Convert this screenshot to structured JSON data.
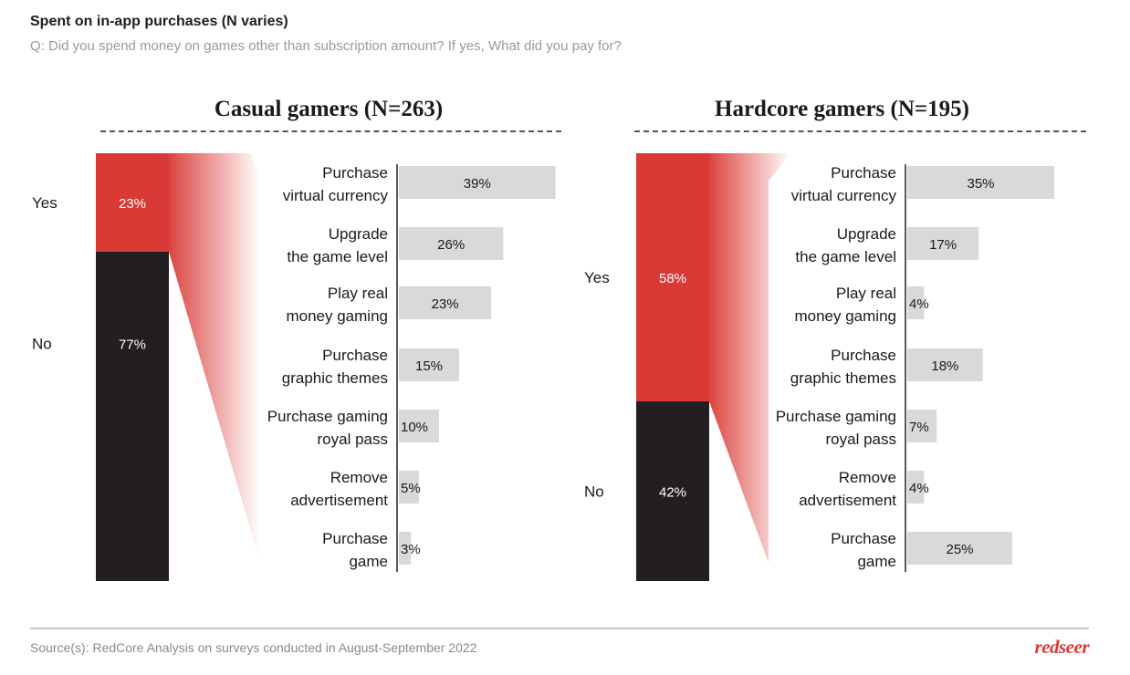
{
  "header": {
    "title": "Spent on in-app purchases (N varies)",
    "subtitle": "Q: Did you spend money on games other than subscription amount? If yes, What did you pay for?"
  },
  "footer": {
    "source": "Source(s): RedCore Analysis on surveys conducted in August-September 2022",
    "logo_text": "redseer"
  },
  "colors": {
    "yes": "#d93a35",
    "no": "#231f20",
    "bar": "#d9d9d9",
    "text": "#1a1a1a"
  },
  "chart_data": [
    {
      "type": "bar",
      "title": "Casual gamers (N=263)",
      "split": [
        {
          "label": "Yes",
          "value": 23,
          "value_label": "23%"
        },
        {
          "label": "No",
          "value": 77,
          "value_label": "77%"
        }
      ],
      "categories": [
        [
          "Purchase",
          "virtual currency"
        ],
        [
          "Upgrade",
          "the game level"
        ],
        [
          "Play real",
          "money gaming"
        ],
        [
          "Purchase",
          "graphic themes"
        ],
        [
          "Purchase gaming",
          "royal pass"
        ],
        [
          "Remove",
          "advertisement"
        ],
        [
          "Purchase",
          "game"
        ]
      ],
      "values": [
        39,
        26,
        23,
        15,
        10,
        5,
        3
      ],
      "value_labels": [
        "39%",
        "26%",
        "23%",
        "15%",
        "10%",
        "5%",
        "3%"
      ],
      "xlim": [
        0,
        40
      ]
    },
    {
      "type": "bar",
      "title": "Hardcore gamers (N=195)",
      "split": [
        {
          "label": "Yes",
          "value": 58,
          "value_label": "58%"
        },
        {
          "label": "No",
          "value": 42,
          "value_label": "42%"
        }
      ],
      "categories": [
        [
          "Purchase",
          "virtual currency"
        ],
        [
          "Upgrade",
          "the game level"
        ],
        [
          "Play real",
          "money gaming"
        ],
        [
          "Purchase",
          "graphic themes"
        ],
        [
          "Purchase gaming",
          "royal pass"
        ],
        [
          "Remove",
          "advertisement"
        ],
        [
          "Purchase",
          "game"
        ]
      ],
      "values": [
        35,
        17,
        4,
        18,
        7,
        4,
        25
      ],
      "value_labels": [
        "35%",
        "17%",
        "4%",
        "18%",
        "7%",
        "4%",
        "25%"
      ],
      "xlim": [
        0,
        40
      ]
    }
  ]
}
